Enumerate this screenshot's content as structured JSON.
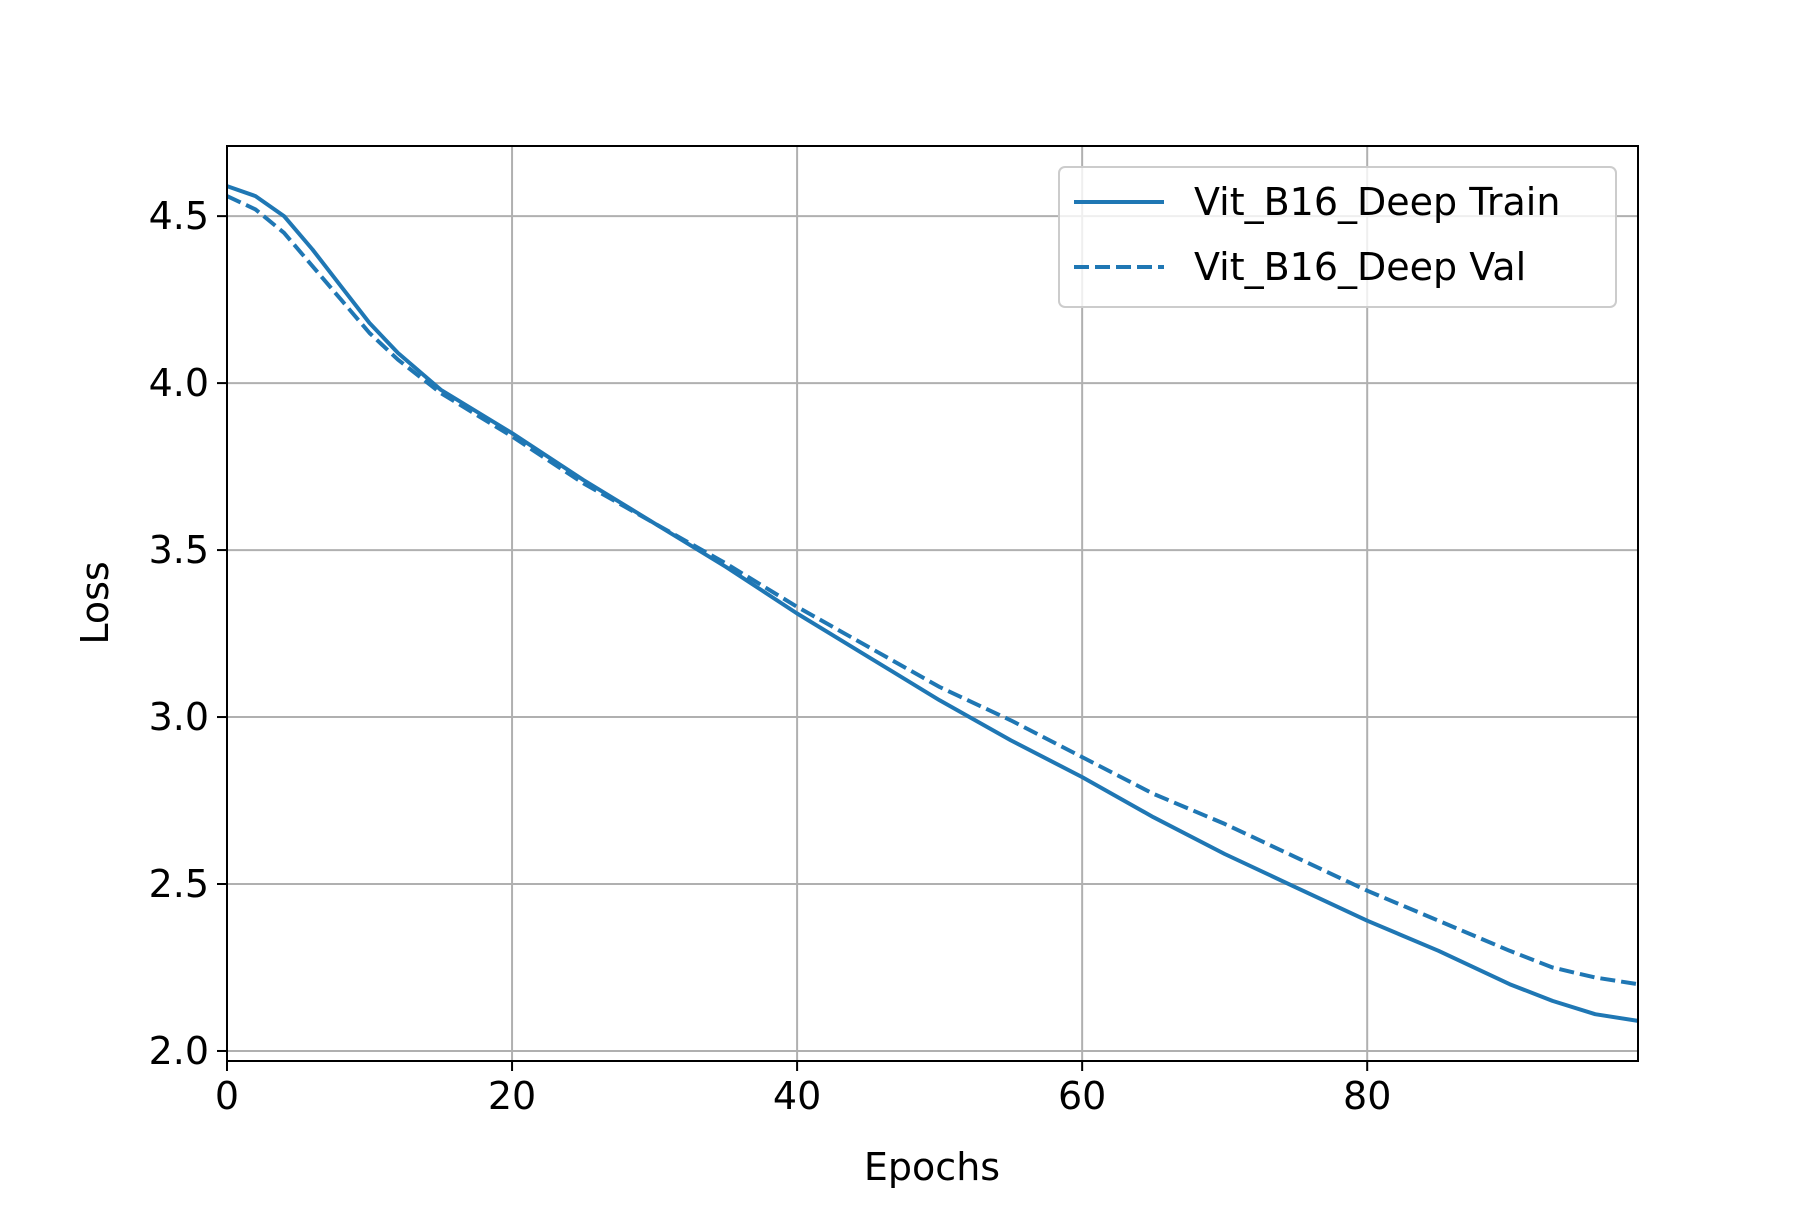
{
  "chart_data": {
    "type": "line",
    "title": "",
    "xlabel": "Epochs",
    "ylabel": "Loss",
    "xlim": [
      0,
      99
    ],
    "ylim": [
      1.97,
      4.71
    ],
    "x_ticks": [
      0,
      20,
      40,
      60,
      80
    ],
    "y_ticks": [
      2.0,
      2.5,
      3.0,
      3.5,
      4.0,
      4.5
    ],
    "x_tick_labels": [
      "0",
      "20",
      "40",
      "60",
      "80"
    ],
    "y_tick_labels": [
      "2.0",
      "2.5",
      "3.0",
      "3.5",
      "4.0",
      "4.5"
    ],
    "grid": true,
    "legend_position": "top-right",
    "series": [
      {
        "name": "Vit_B16_Deep Train",
        "color": "#1f77b4",
        "style": "solid",
        "x": [
          0,
          2,
          4,
          6,
          8,
          10,
          12,
          15,
          20,
          25,
          30,
          35,
          40,
          45,
          50,
          55,
          60,
          65,
          70,
          75,
          80,
          85,
          90,
          93,
          96,
          99
        ],
        "y": [
          4.59,
          4.56,
          4.5,
          4.4,
          4.29,
          4.18,
          4.09,
          3.98,
          3.85,
          3.71,
          3.58,
          3.45,
          3.31,
          3.18,
          3.05,
          2.93,
          2.82,
          2.7,
          2.59,
          2.49,
          2.39,
          2.3,
          2.2,
          2.15,
          2.11,
          2.09
        ]
      },
      {
        "name": "Vit_B16_Deep Val",
        "color": "#1f77b4",
        "style": "dashed",
        "x": [
          0,
          2,
          4,
          6,
          8,
          10,
          12,
          15,
          20,
          25,
          30,
          35,
          40,
          45,
          50,
          55,
          60,
          65,
          70,
          75,
          80,
          85,
          90,
          93,
          96,
          99
        ],
        "y": [
          4.56,
          4.52,
          4.45,
          4.35,
          4.25,
          4.15,
          4.07,
          3.97,
          3.84,
          3.7,
          3.58,
          3.46,
          3.33,
          3.21,
          3.09,
          2.99,
          2.88,
          2.77,
          2.68,
          2.58,
          2.48,
          2.39,
          2.3,
          2.25,
          2.22,
          2.2
        ]
      }
    ]
  }
}
